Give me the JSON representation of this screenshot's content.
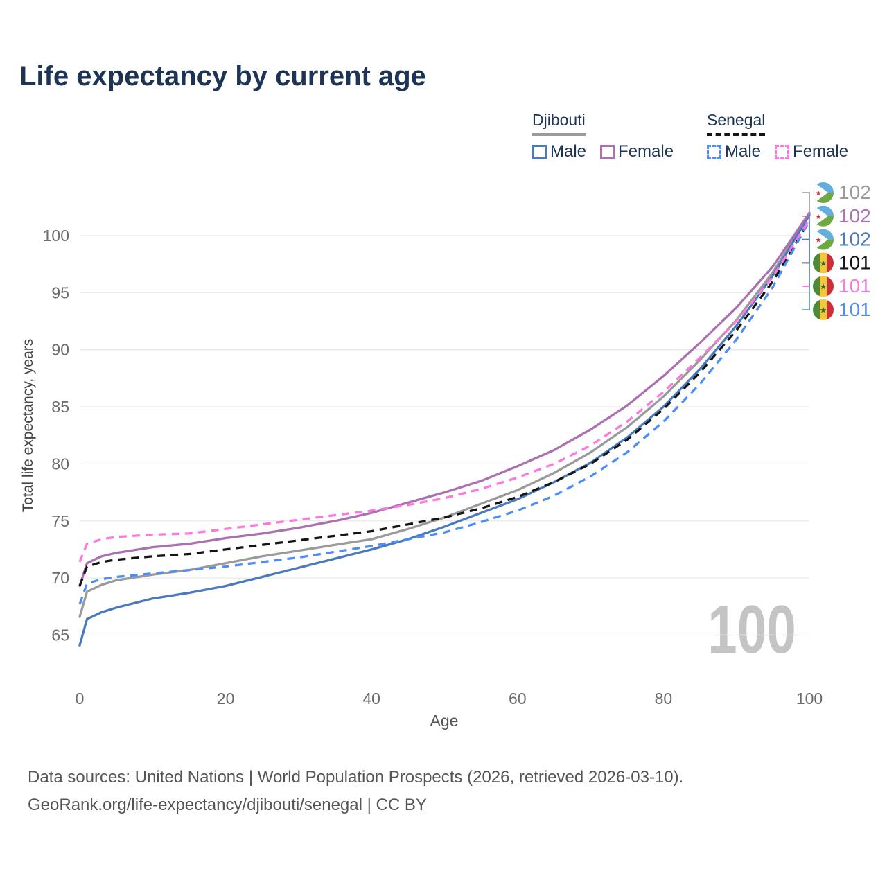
{
  "header": {
    "title": "Life expectancy by current age"
  },
  "legend": {
    "groups": [
      {
        "country": "Djibouti",
        "line_style": "solid",
        "underline_color": "#9a9a9a",
        "items": [
          {
            "label": "Male",
            "color": "#4b7abc",
            "dashed": false
          },
          {
            "label": "Female",
            "color": "#ab70b2",
            "dashed": false
          }
        ]
      },
      {
        "country": "Senegal",
        "line_style": "dashed",
        "underline_color": "#141414",
        "items": [
          {
            "label": "Male",
            "color": "#4e8df4",
            "dashed": true
          },
          {
            "label": "Female",
            "color": "#fb78e2",
            "dashed": true
          }
        ]
      }
    ]
  },
  "watermark": "100",
  "chart_data": {
    "type": "line",
    "title": "Life expectancy by current age",
    "xlabel": "Age",
    "ylabel": "Total life expectancy, years",
    "x_ticks": [
      0,
      20,
      40,
      60,
      80,
      100
    ],
    "y_ticks": [
      65,
      70,
      75,
      80,
      85,
      90,
      95,
      100
    ],
    "xlim": [
      0,
      100
    ],
    "ylim": [
      63,
      103
    ],
    "grid": "horizontal",
    "legend_position": "top-right",
    "x": [
      0,
      1,
      3,
      5,
      10,
      15,
      20,
      25,
      30,
      35,
      40,
      45,
      50,
      55,
      60,
      65,
      70,
      75,
      80,
      85,
      90,
      95,
      100
    ],
    "series": [
      {
        "name": "Djibouti Total",
        "country": "Djibouti",
        "sex": "both",
        "color": "#9a9a9a",
        "dashed": false,
        "values": [
          66.6,
          68.8,
          69.4,
          69.8,
          70.3,
          70.7,
          71.3,
          71.9,
          72.4,
          72.9,
          73.4,
          74.3,
          75.3,
          76.5,
          77.7,
          79.2,
          81.0,
          83.2,
          85.9,
          89.1,
          92.6,
          96.8,
          101.9
        ]
      },
      {
        "name": "Djibouti Male",
        "country": "Djibouti",
        "sex": "male",
        "color": "#4b7abc",
        "dashed": false,
        "values": [
          64.1,
          66.4,
          67.0,
          67.4,
          68.2,
          68.7,
          69.3,
          70.1,
          70.9,
          71.7,
          72.5,
          73.4,
          74.5,
          75.7,
          76.9,
          78.4,
          80.1,
          82.3,
          85.0,
          88.3,
          92.1,
          96.5,
          101.8
        ]
      },
      {
        "name": "Djibouti Female",
        "country": "Djibouti",
        "sex": "female",
        "color": "#ab70b2",
        "dashed": false,
        "values": [
          69.3,
          71.3,
          71.9,
          72.2,
          72.7,
          73.0,
          73.5,
          73.9,
          74.4,
          75.0,
          75.7,
          76.6,
          77.5,
          78.5,
          79.8,
          81.2,
          83.0,
          85.1,
          87.7,
          90.6,
          93.7,
          97.3,
          102.0
        ]
      },
      {
        "name": "Senegal Total",
        "country": "Senegal",
        "sex": "both",
        "color": "#141414",
        "dashed": true,
        "values": [
          69.3,
          71.0,
          71.4,
          71.6,
          71.9,
          72.1,
          72.5,
          72.9,
          73.3,
          73.7,
          74.1,
          74.7,
          75.3,
          76.1,
          77.1,
          78.4,
          80.0,
          82.1,
          84.8,
          88.0,
          91.7,
          96.0,
          101.3
        ]
      },
      {
        "name": "Senegal Male",
        "country": "Senegal",
        "sex": "male",
        "color": "#4e8df4",
        "dashed": true,
        "values": [
          67.7,
          69.5,
          69.9,
          70.1,
          70.4,
          70.7,
          71.0,
          71.4,
          71.8,
          72.3,
          72.8,
          73.4,
          74.0,
          74.9,
          75.9,
          77.2,
          78.9,
          81.0,
          83.7,
          87.0,
          90.9,
          95.5,
          101.3
        ]
      },
      {
        "name": "Senegal Female",
        "country": "Senegal",
        "sex": "female",
        "color": "#fb78e2",
        "dashed": true,
        "values": [
          71.4,
          73.0,
          73.4,
          73.6,
          73.8,
          73.9,
          74.3,
          74.7,
          75.1,
          75.5,
          75.9,
          76.4,
          77.0,
          77.8,
          78.8,
          80.0,
          81.6,
          83.7,
          86.3,
          89.3,
          92.5,
          96.4,
          101.4
        ]
      }
    ],
    "end_labels": [
      {
        "series": "Djibouti Total",
        "flag": "djibouti",
        "value": "102",
        "color": "#9a9a9a"
      },
      {
        "series": "Djibouti Female",
        "flag": "djibouti",
        "value": "102",
        "color": "#ab70b2"
      },
      {
        "series": "Djibouti Male",
        "flag": "djibouti",
        "value": "102",
        "color": "#4b7abc"
      },
      {
        "series": "Senegal Total",
        "flag": "senegal",
        "value": "101",
        "color": "#141414"
      },
      {
        "series": "Senegal Female",
        "flag": "senegal",
        "value": "101",
        "color": "#fb78e2"
      },
      {
        "series": "Senegal Male",
        "flag": "senegal",
        "value": "101",
        "color": "#4e8df4"
      }
    ]
  },
  "colors": {
    "title": "#1d3455",
    "axis_text": "#6b6b6b",
    "gridline": "#e9e9e9",
    "watermark": "#c4c4c4",
    "footer_text": "#555555"
  },
  "footer": {
    "line1": "Data sources: United Nations | World Population Prospects (2026, retrieved 2026-03-10).",
    "line2": "GeoRank.org/life-expectancy/djibouti/senegal | CC BY"
  }
}
